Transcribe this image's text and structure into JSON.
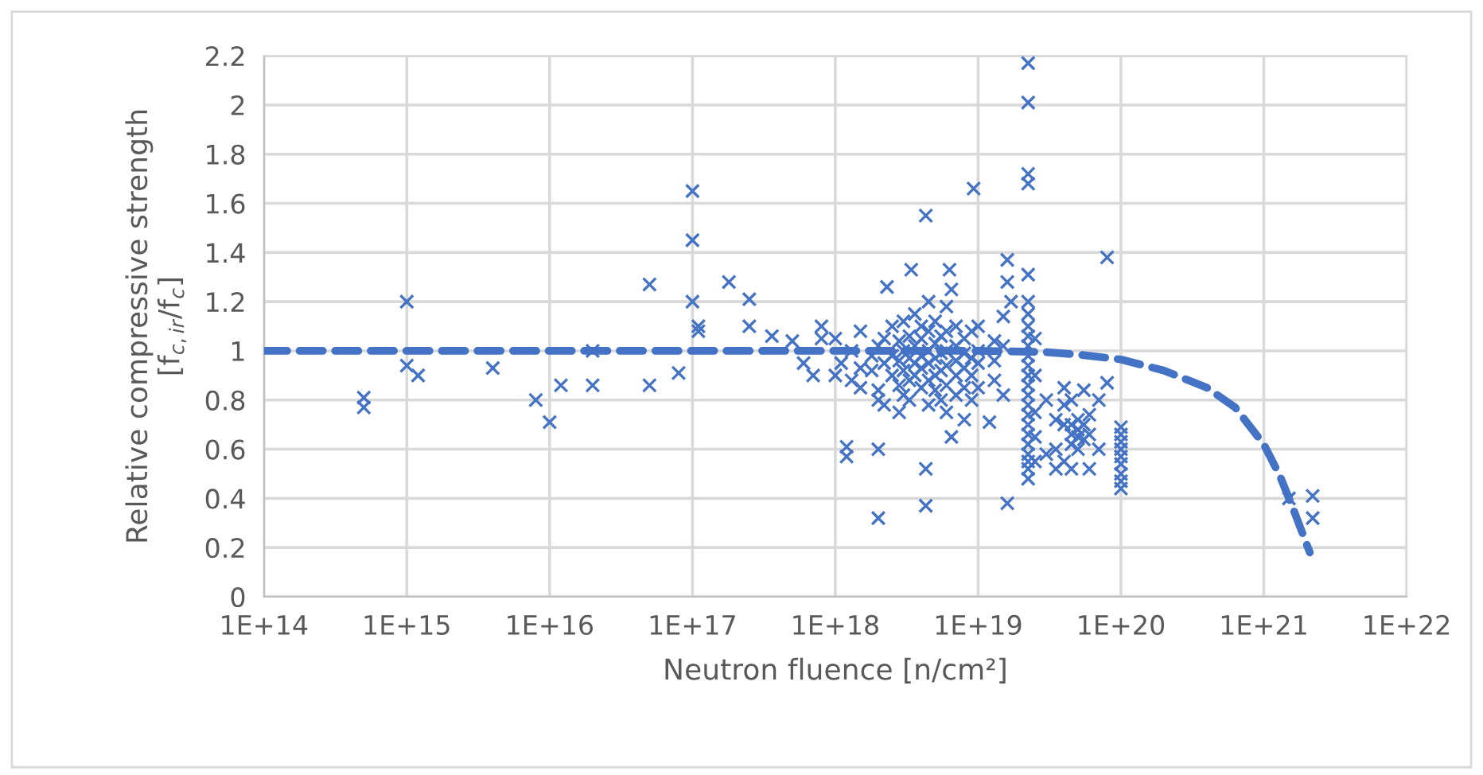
{
  "chart_data": {
    "type": "scatter",
    "xlabel": "Neutron fluence [n/cm²]",
    "ylabel": "Relative compressive strength\n[f$_{c,ir}$/f$_{c}$]",
    "log": "x",
    "xlim": [
      100000000000000.0,
      1e+22
    ],
    "xticks": [
      {
        "value": 100000000000000.0,
        "label": "1E+14"
      },
      {
        "value": 1000000000000000.0,
        "label": "1E+15"
      },
      {
        "value": 1e+16,
        "label": "1E+16"
      },
      {
        "value": 1e+17,
        "label": "1E+17"
      },
      {
        "value": 1e+18,
        "label": "1E+18"
      },
      {
        "value": 1e+19,
        "label": "1E+19"
      },
      {
        "value": 1e+20,
        "label": "1E+20"
      },
      {
        "value": 1e+21,
        "label": "1E+21"
      },
      {
        "value": 1e+22,
        "label": "1E+22"
      }
    ],
    "ylim": [
      0,
      2.2
    ],
    "yticks": [
      0,
      0.2,
      0.4,
      0.6,
      0.8,
      1,
      1.2,
      1.4,
      1.6,
      1.8,
      2,
      2.2
    ],
    "grid": true,
    "series": [
      {
        "color": "#4472c4",
        "marker": "cross",
        "x": [
          500000000000000.0,
          500000000000000.0,
          1000000000000000.0,
          1000000000000000.0,
          1200000000000000.0,
          4000000000000000.0,
          8000000000000000.0,
          1e+16,
          1.2e+16,
          2e+16,
          2e+16,
          5e+16,
          5e+16,
          8e+16,
          1e+17,
          1e+17,
          1e+17,
          1.1e+17,
          1.1e+17,
          1.8e+17,
          2.5e+17,
          2.5e+17,
          3.6e+17,
          5e+17,
          6e+17,
          7e+17,
          8e+17,
          8e+17,
          1e+18,
          1e+18,
          1.1e+18,
          1.2e+18,
          1.2e+18,
          1.3e+18,
          1.3e+18,
          1.5e+18,
          1.5e+18,
          1.5e+18,
          1.8e+18,
          1.8e+18,
          2e+18,
          2e+18,
          2e+18,
          2e+18,
          2e+18,
          2.2e+18,
          2.2e+18,
          2.2e+18,
          2.3e+18,
          2.5e+18,
          2.5e+18,
          2.5e+18,
          2.8e+18,
          2.8e+18,
          2.8e+18,
          2.8e+18,
          3e+18,
          3e+18,
          3e+18,
          3e+18,
          3.3e+18,
          3.3e+18,
          3.3e+18,
          3.3e+18,
          3.4e+18,
          3.6e+18,
          3.6e+18,
          3.6e+18,
          3.6e+18,
          4e+18,
          4e+18,
          4e+18,
          4e+18,
          4e+18,
          4.3e+18,
          4.3e+18,
          4.3e+18,
          4.5e+18,
          4.5e+18,
          4.5e+18,
          4.5e+18,
          4.5e+18,
          4.5e+18,
          5e+18,
          5e+18,
          5e+18,
          5e+18,
          5e+18,
          5.5e+18,
          5.5e+18,
          5.5e+18,
          5.5e+18,
          6e+18,
          6e+18,
          6e+18,
          6e+18,
          6e+18,
          6e+18,
          6.3e+18,
          6.5e+18,
          6.5e+18,
          7e+18,
          7e+18,
          7e+18,
          7e+18,
          7e+18,
          8e+18,
          8e+18,
          8e+18,
          8e+18,
          8e+18,
          9e+18,
          9e+18,
          9e+18,
          9e+18,
          9.3e+18,
          1e+19,
          1e+19,
          1e+19,
          1e+19,
          1.2e+19,
          1.3e+19,
          1.3e+19,
          1.3e+19,
          1.5e+19,
          1.5e+19,
          1.5e+19,
          1.6e+19,
          1.6e+19,
          1.6e+19,
          1.7e+19,
          2.24e+19,
          2.24e+19,
          2.24e+19,
          2.24e+19,
          2.24e+19,
          2.24e+19,
          2.24e+19,
          2.24e+19,
          2.24e+19,
          2.24e+19,
          2.24e+19,
          2.24e+19,
          2.24e+19,
          2.24e+19,
          2.24e+19,
          2.24e+19,
          2.24e+19,
          2.24e+19,
          2.24e+19,
          2.24e+19,
          2.24e+19,
          2.24e+19,
          2.24e+19,
          2.24e+19,
          2.5e+19,
          2.5e+19,
          2.5e+19,
          2.5e+19,
          2.5e+19,
          3e+19,
          3e+19,
          3.5e+19,
          3.5e+19,
          3.5e+19,
          4e+19,
          4e+19,
          4e+19,
          4e+19,
          4.5e+19,
          4.5e+19,
          4.5e+19,
          4.5e+19,
          4.5e+19,
          5e+19,
          5e+19,
          5e+19,
          5e+19,
          5.5e+19,
          5.5e+19,
          5.5e+19,
          6e+19,
          6e+19,
          6e+19,
          7e+19,
          7e+19,
          8e+19,
          8e+19,
          1e+20,
          1e+20,
          1e+20,
          1e+20,
          1e+20,
          1e+20,
          1e+20,
          1e+20,
          1e+20,
          1.5e+21,
          2.2e+21,
          2.2e+21
        ],
        "values": [
          0.81,
          0.77,
          1.2,
          0.94,
          0.9,
          0.93,
          0.8,
          0.71,
          0.86,
          0.86,
          1.0,
          0.86,
          1.27,
          0.91,
          1.65,
          1.45,
          1.2,
          1.1,
          1.08,
          1.28,
          1.21,
          1.1,
          1.06,
          1.04,
          0.95,
          0.9,
          1.1,
          1.05,
          0.9,
          1.05,
          0.95,
          0.61,
          0.57,
          0.88,
          1.0,
          0.85,
          0.93,
          1.08,
          0.92,
          0.98,
          0.8,
          0.84,
          1.02,
          0.6,
          0.32,
          0.78,
          0.95,
          1.05,
          1.26,
          0.9,
          0.98,
          1.1,
          0.75,
          0.86,
          0.96,
          1.04,
          0.82,
          0.92,
          1.0,
          1.12,
          0.8,
          0.88,
          0.97,
          1.06,
          1.33,
          0.9,
          0.95,
          1.02,
          1.15,
          0.85,
          0.93,
          0.98,
          1.05,
          1.1,
          1.55,
          0.37,
          0.52,
          0.78,
          0.88,
          0.95,
          1.0,
          1.08,
          1.2,
          0.84,
          0.9,
          0.97,
          1.03,
          1.12,
          0.8,
          0.92,
          0.99,
          1.06,
          0.75,
          0.86,
          0.94,
          1.0,
          1.08,
          1.18,
          1.33,
          0.65,
          1.25,
          0.82,
          0.9,
          0.96,
          1.02,
          1.1,
          0.72,
          0.85,
          0.93,
          0.99,
          1.05,
          0.8,
          0.9,
          0.97,
          1.08,
          1.66,
          0.85,
          0.95,
          1.0,
          1.1,
          0.71,
          0.88,
          0.96,
          1.04,
          0.82,
          1.02,
          1.14,
          1.37,
          1.28,
          0.38,
          1.2,
          0.48,
          0.52,
          0.55,
          0.58,
          0.62,
          0.66,
          0.7,
          0.74,
          0.78,
          0.82,
          0.86,
          0.9,
          0.94,
          0.98,
          1.02,
          1.06,
          1.1,
          1.15,
          1.2,
          1.31,
          1.68,
          1.72,
          2.01,
          2.17,
          0.55,
          0.65,
          0.75,
          0.9,
          1.05,
          0.58,
          0.8,
          0.52,
          0.6,
          0.72,
          0.55,
          0.7,
          0.78,
          0.85,
          0.52,
          0.62,
          0.66,
          0.7,
          0.8,
          0.6,
          0.65,
          0.68,
          0.72,
          0.64,
          0.7,
          0.84,
          0.52,
          0.66,
          0.74,
          0.6,
          0.8,
          0.87,
          1.38,
          0.44,
          0.47,
          0.5,
          0.54,
          0.57,
          0.6,
          0.63,
          0.66,
          0.69,
          0.4,
          0.41,
          0.32
        ]
      },
      {
        "type": "line",
        "color": "#4472c4",
        "line_style": "dashed",
        "marker": "none",
        "x": [
          100000000000000.0,
          1e+19,
          3e+19,
          5e+19,
          1e+20,
          2e+20,
          4e+20,
          6.3e+20,
          1e+21,
          1.3e+21,
          1.6e+21,
          2.1e+21
        ],
        "values": [
          1,
          1,
          0.995,
          0.985,
          0.965,
          0.92,
          0.85,
          0.77,
          0.62,
          0.49,
          0.36,
          0.18
        ]
      }
    ]
  }
}
